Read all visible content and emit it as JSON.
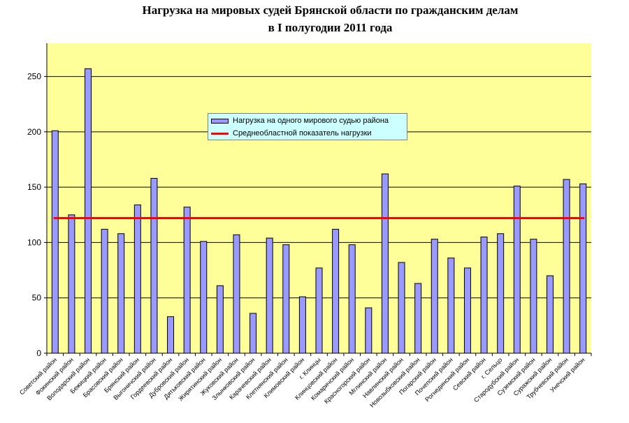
{
  "chart_data": {
    "type": "bar",
    "title_lines": [
      "Нагрузка на мировых судей Брянской области по гражданским делам",
      "в I полугодии 2011 года"
    ],
    "categories": [
      "Советский район",
      "Фокинский район",
      "Володарский район",
      "Бежицкий район",
      "Брасовский район",
      "Брянский район",
      "Выгоничский район",
      "Гордеевский район",
      "Дубровский район",
      "Дятьковский район",
      "Жирятинский район",
      "Жуковский район",
      "Злынковский район",
      "Карачевский район",
      "Клетнянский район",
      "Климовский район",
      "г. Клинцы",
      "Клинцовский район",
      "Комаричский район",
      "Красногорский район",
      "Мглинский район",
      "Навлинский район",
      "Новозыбковский район",
      "Погарский район",
      "Почепский район",
      "Рогнединский район",
      "Севский район",
      "г. Сельцо",
      "Стародубский район",
      "Суземский район",
      "Суражский район",
      "Трубчевский район",
      "Унечский район"
    ],
    "series": [
      {
        "name": "Нагрузка на одного мирового судью района",
        "color": "#9999ff",
        "values": [
          201,
          125,
          257,
          112,
          108,
          134,
          158,
          33,
          132,
          101,
          61,
          107,
          36,
          104,
          98,
          51,
          77,
          112,
          98,
          41,
          162,
          82,
          63,
          103,
          86,
          77,
          105,
          108,
          151,
          103,
          70,
          157,
          153
        ]
      },
      {
        "name": "Среднеобластной показатель нагрузки",
        "color": "#ff0000",
        "type": "line",
        "value": 122
      }
    ],
    "yticks": [
      0,
      50,
      100,
      150,
      200,
      250
    ],
    "ylim": [
      0,
      280
    ],
    "xlabel": "",
    "ylabel": "",
    "plot_background": "#ffff99",
    "grid": true,
    "legend_position": "top-center"
  }
}
